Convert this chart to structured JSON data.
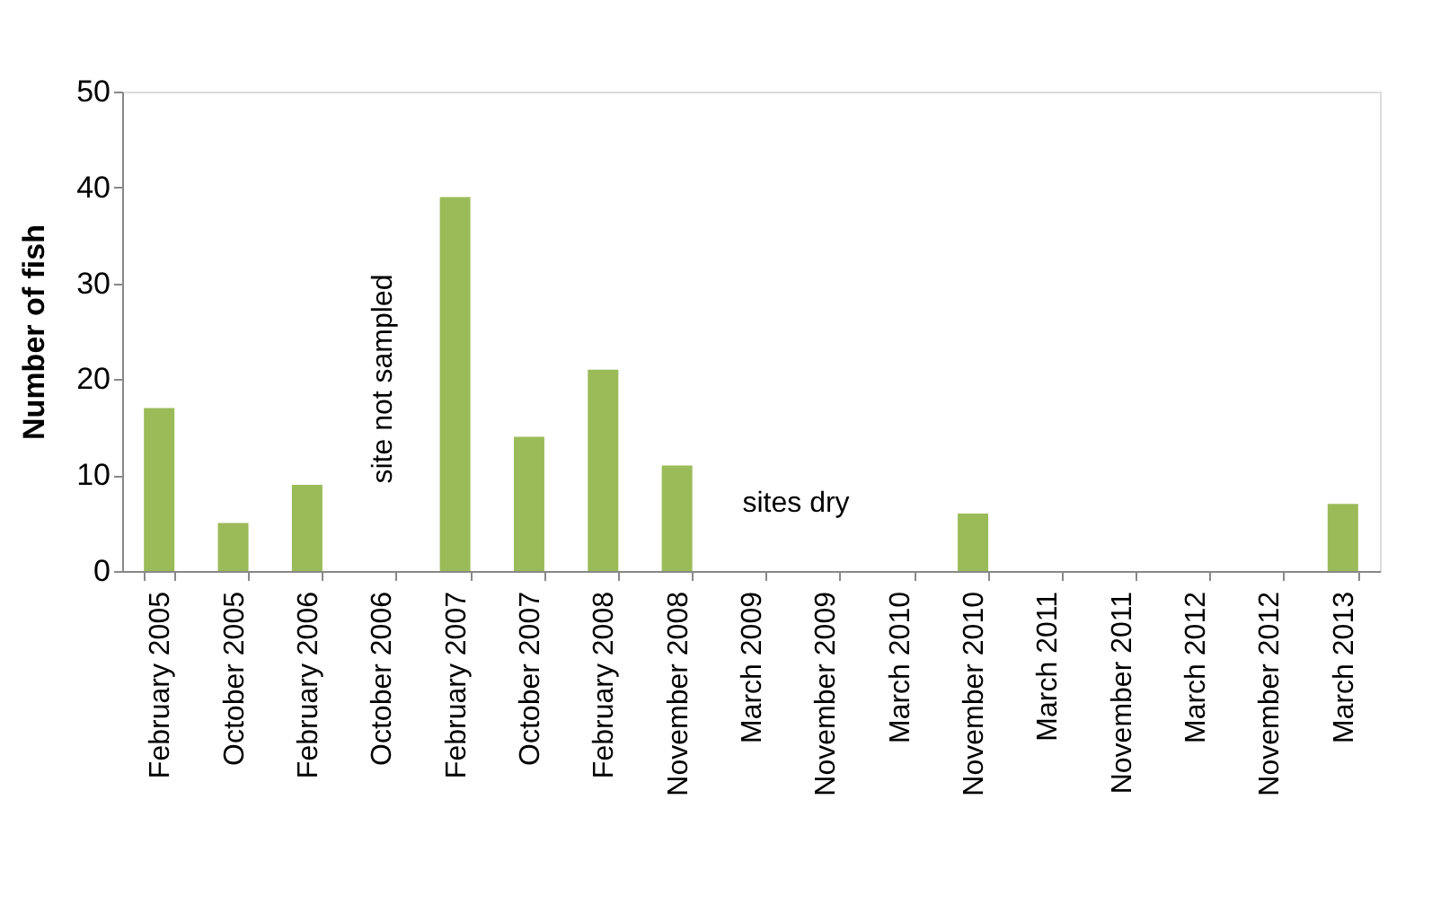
{
  "chart_data": {
    "type": "bar",
    "ylabel": "Number of fish",
    "categories": [
      "February  2005",
      "October  2005",
      "February  2006",
      "October  2006",
      "February  2007",
      "October  2007",
      "February  2008",
      "November  2008",
      "March  2009",
      "November  2009",
      "March  2010",
      "November  2010",
      "March  2011",
      "November  2011",
      "March  2012",
      "November  2012",
      "March  2013"
    ],
    "series": [
      {
        "color": "#9bbb59",
        "values": [
          17,
          5,
          9,
          null,
          39,
          14,
          21,
          11,
          0,
          0,
          0,
          6,
          0,
          0,
          0,
          0,
          7
        ]
      }
    ],
    "ylim": [
      0,
      50
    ],
    "yticks": [
      0,
      10,
      20,
      30,
      40,
      50
    ],
    "grid": false,
    "legend": false,
    "annotations": [
      "site not sampled",
      "sites dry"
    ]
  }
}
